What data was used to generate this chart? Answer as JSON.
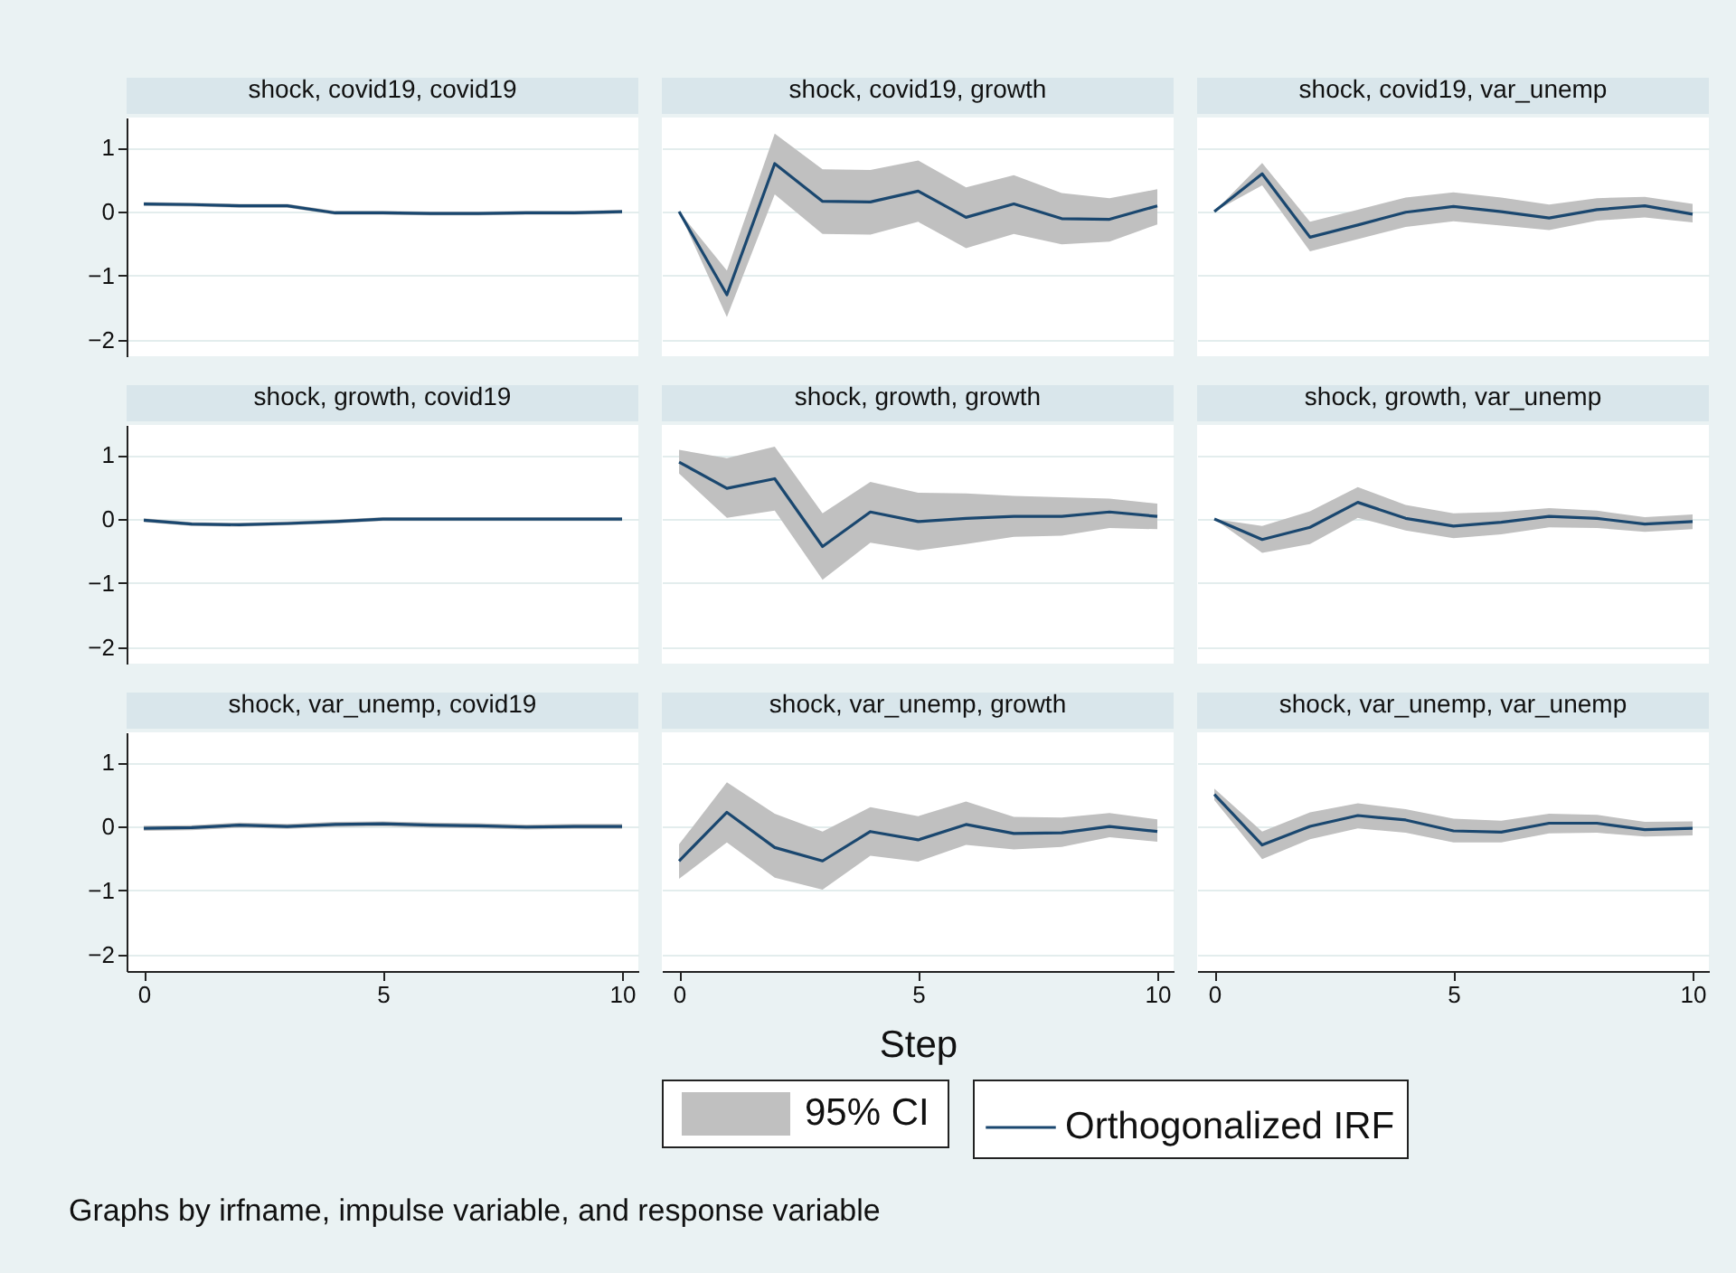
{
  "chart_data": [
    {
      "type": "line",
      "title": "shock, covid19, covid19",
      "x": [
        0,
        1,
        2,
        3,
        4,
        5,
        6,
        7,
        8,
        9,
        10
      ],
      "xlim": [
        -0.36,
        10.34
      ],
      "xticks": [
        0,
        5,
        10
      ],
      "ylim": [
        -2.26,
        1.47
      ],
      "yticks": [
        -2,
        -1,
        0,
        1
      ],
      "grid": "y",
      "tick_labels": "y",
      "series": [
        {
          "color": "#1a476f",
          "values": [
            0.12,
            0.11,
            0.09,
            0.09,
            -0.02,
            -0.02,
            -0.03,
            -0.03,
            -0.02,
            -0.02,
            0
          ],
          "lower": [
            0.09,
            0.08,
            0.06,
            0.06,
            -0.05,
            -0.05,
            -0.06,
            -0.06,
            -0.05,
            -0.05,
            -0.03
          ],
          "upper": [
            0.15,
            0.14,
            0.12,
            0.12,
            0.01,
            0.01,
            0,
            0,
            0.01,
            0.01,
            0.03
          ]
        }
      ]
    },
    {
      "type": "line",
      "title": "shock, covid19, growth",
      "x": [
        0,
        1,
        2,
        3,
        4,
        5,
        6,
        7,
        8,
        9,
        10
      ],
      "xlim": [
        -0.36,
        10.34
      ],
      "xticks": [
        0,
        5,
        10
      ],
      "ylim": [
        -2.26,
        1.47
      ],
      "yticks": [
        -2,
        -1,
        0,
        1
      ],
      "grid": "y",
      "tick_labels": false,
      "series": [
        {
          "color": "#1a476f",
          "values": [
            0,
            -1.3,
            0.75,
            0.16,
            0.15,
            0.32,
            -0.09,
            0.12,
            -0.11,
            -0.12,
            0.09
          ],
          "lower": [
            0,
            -1.65,
            0.27,
            -0.35,
            -0.36,
            -0.16,
            -0.57,
            -0.35,
            -0.51,
            -0.47,
            -0.2
          ],
          "upper": [
            0,
            -0.92,
            1.22,
            0.66,
            0.65,
            0.8,
            0.38,
            0.57,
            0.29,
            0.21,
            0.35
          ]
        }
      ]
    },
    {
      "type": "line",
      "title": "shock, covid19, var_unemp",
      "x": [
        0,
        1,
        2,
        3,
        4,
        5,
        6,
        7,
        8,
        9,
        10
      ],
      "xlim": [
        -0.36,
        10.34
      ],
      "xticks": [
        0,
        5,
        10
      ],
      "ylim": [
        -2.26,
        1.47
      ],
      "yticks": [
        -2,
        -1,
        0,
        1
      ],
      "grid": "y",
      "tick_labels": false,
      "series": [
        {
          "color": "#1a476f",
          "values": [
            0,
            0.59,
            -0.4,
            -0.21,
            -0.01,
            0.08,
            0,
            -0.1,
            0.03,
            0.09,
            -0.04
          ],
          "lower": [
            0,
            0.41,
            -0.62,
            -0.43,
            -0.24,
            -0.15,
            -0.22,
            -0.29,
            -0.14,
            -0.09,
            -0.17
          ],
          "upper": [
            0,
            0.76,
            -0.16,
            0.03,
            0.22,
            0.3,
            0.22,
            0.11,
            0.21,
            0.23,
            0.12
          ]
        }
      ]
    },
    {
      "type": "line",
      "title": "shock, growth, covid19",
      "x": [
        0,
        1,
        2,
        3,
        4,
        5,
        6,
        7,
        8,
        9,
        10
      ],
      "xlim": [
        -0.36,
        10.34
      ],
      "xticks": [
        0,
        5,
        10
      ],
      "ylim": [
        -2.26,
        1.47
      ],
      "yticks": [
        -2,
        -1,
        0,
        1
      ],
      "grid": "y",
      "tick_labels": "y",
      "series": [
        {
          "color": "#1a476f",
          "values": [
            -0.02,
            -0.08,
            -0.09,
            -0.07,
            -0.04,
            0,
            0,
            0,
            0,
            0,
            0
          ],
          "lower": [
            -0.05,
            -0.11,
            -0.12,
            -0.1,
            -0.07,
            -0.03,
            -0.03,
            -0.03,
            -0.03,
            -0.03,
            -0.03
          ],
          "upper": [
            0.01,
            -0.05,
            -0.06,
            -0.04,
            -0.01,
            0.03,
            0.03,
            0.03,
            0.03,
            0.03,
            0.03
          ]
        }
      ]
    },
    {
      "type": "line",
      "title": "shock, growth, growth",
      "x": [
        0,
        1,
        2,
        3,
        4,
        5,
        6,
        7,
        8,
        9,
        10
      ],
      "xlim": [
        -0.36,
        10.34
      ],
      "xticks": [
        0,
        5,
        10
      ],
      "ylim": [
        -2.26,
        1.47
      ],
      "yticks": [
        -2,
        -1,
        0,
        1
      ],
      "grid": "y",
      "tick_labels": false,
      "series": [
        {
          "color": "#1a476f",
          "values": [
            0.89,
            0.48,
            0.63,
            -0.43,
            0.11,
            -0.04,
            0.01,
            0.04,
            0.04,
            0.11,
            0.04
          ],
          "lower": [
            0.71,
            0.02,
            0.13,
            -0.95,
            -0.37,
            -0.49,
            -0.39,
            -0.28,
            -0.26,
            -0.14,
            -0.16
          ],
          "upper": [
            1.08,
            0.95,
            1.13,
            0.09,
            0.58,
            0.41,
            0.4,
            0.36,
            0.34,
            0.32,
            0.24
          ]
        }
      ]
    },
    {
      "type": "line",
      "title": "shock, growth, var_unemp",
      "x": [
        0,
        1,
        2,
        3,
        4,
        5,
        6,
        7,
        8,
        9,
        10
      ],
      "xlim": [
        -0.36,
        10.34
      ],
      "xticks": [
        0,
        5,
        10
      ],
      "ylim": [
        -2.26,
        1.47
      ],
      "yticks": [
        -2,
        -1,
        0,
        1
      ],
      "grid": "y",
      "tick_labels": false,
      "series": [
        {
          "color": "#1a476f",
          "values": [
            0,
            -0.32,
            -0.13,
            0.26,
            0.01,
            -0.11,
            -0.05,
            0.04,
            0.01,
            -0.08,
            -0.04
          ],
          "lower": [
            0,
            -0.53,
            -0.39,
            0.02,
            -0.18,
            -0.3,
            -0.24,
            -0.13,
            -0.14,
            -0.2,
            -0.16
          ],
          "upper": [
            0,
            -0.11,
            0.12,
            0.5,
            0.22,
            0.09,
            0.11,
            0.17,
            0.13,
            0.03,
            0.07
          ]
        }
      ]
    },
    {
      "type": "line",
      "title": "shock, var_unemp, covid19",
      "x": [
        0,
        1,
        2,
        3,
        4,
        5,
        6,
        7,
        8,
        9,
        10
      ],
      "xlim": [
        -0.36,
        10.34
      ],
      "xticks": [
        0,
        5,
        10
      ],
      "ylim": [
        -2.26,
        1.47
      ],
      "yticks": [
        -2,
        -1,
        0,
        1
      ],
      "grid": "y",
      "series": [
        {
          "color": "#1a476f",
          "values": [
            -0.03,
            -0.02,
            0.02,
            0,
            0.03,
            0.04,
            0.02,
            0.01,
            -0.01,
            0,
            0
          ],
          "lower": [
            -0.07,
            -0.06,
            -0.02,
            -0.04,
            -0.01,
            0,
            -0.02,
            -0.03,
            -0.05,
            -0.04,
            -0.04
          ],
          "upper": [
            0.01,
            0.02,
            0.06,
            0.04,
            0.07,
            0.08,
            0.06,
            0.05,
            0.03,
            0.04,
            0.04
          ]
        }
      ]
    },
    {
      "type": "line",
      "title": "shock, var_unemp, growth",
      "xlabel": "Step",
      "legend": "bottom",
      "annotations": [
        "95% CI",
        "Graphs by irfname, impulse variable, and response variable"
      ],
      "x": [
        0,
        1,
        2,
        3,
        4,
        5,
        6,
        7,
        8,
        9,
        10
      ],
      "xlim": [
        -0.36,
        10.34
      ],
      "xticks": [
        0,
        5,
        10
      ],
      "ylim": [
        -2.26,
        1.47
      ],
      "yticks": [
        -2,
        -1,
        0,
        1
      ],
      "grid": "y",
      "tick_labels": "x",
      "series": [
        {
          "name": "Orthogonalized IRF",
          "color": "#1a476f",
          "values": [
            -0.54,
            0.22,
            -0.33,
            -0.54,
            -0.08,
            -0.21,
            0.03,
            -0.11,
            -0.1,
            0,
            -0.08
          ],
          "lower": [
            -0.82,
            -0.25,
            -0.8,
            -0.99,
            -0.46,
            -0.55,
            -0.29,
            -0.36,
            -0.32,
            -0.17,
            -0.24
          ],
          "upper": [
            -0.28,
            0.69,
            0.2,
            -0.08,
            0.3,
            0.16,
            0.39,
            0.15,
            0.14,
            0.21,
            0.11
          ]
        }
      ]
    },
    {
      "type": "line",
      "title": "shock, var_unemp, var_unemp",
      "x": [
        0,
        1,
        2,
        3,
        4,
        5,
        6,
        7,
        8,
        9,
        10
      ],
      "xlim": [
        -0.36,
        10.34
      ],
      "xticks": [
        0,
        5,
        10
      ],
      "ylim": [
        -2.26,
        1.47
      ],
      "yticks": [
        -2,
        -1,
        0,
        1
      ],
      "grid": "y",
      "tick_labels": "x",
      "series": [
        {
          "color": "#1a476f",
          "values": [
            0.5,
            -0.29,
            0,
            0.17,
            0.1,
            -0.07,
            -0.09,
            0.05,
            0.05,
            -0.05,
            -0.03
          ],
          "lower": [
            0.41,
            -0.51,
            -0.2,
            -0.03,
            -0.1,
            -0.25,
            -0.25,
            -0.11,
            -0.1,
            -0.16,
            -0.14
          ],
          "upper": [
            0.59,
            -0.08,
            0.22,
            0.36,
            0.27,
            0.12,
            0.09,
            0.2,
            0.18,
            0.07,
            0.08
          ]
        }
      ]
    }
  ]
}
